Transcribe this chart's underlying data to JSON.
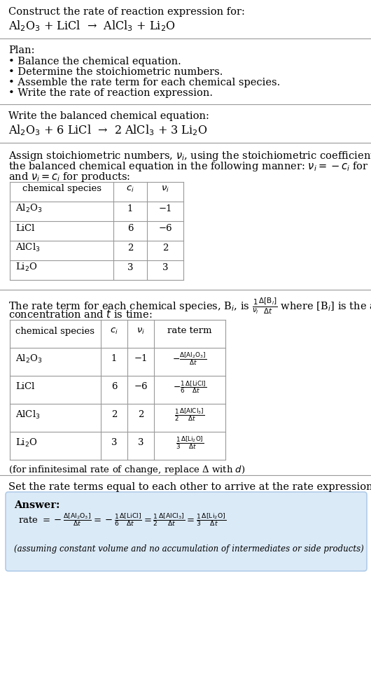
{
  "bg_color": "#ffffff",
  "text_color": "#000000",
  "answer_bg": "#dbeaf7",
  "answer_border": "#b0cce8",
  "title_text": "Construct the rate of reaction expression for:",
  "reaction_unbalanced": "Al$_2$O$_3$ + LiCl  →  AlCl$_3$ + Li$_2$O",
  "plan_header": "Plan:",
  "plan_bullets": [
    "• Balance the chemical equation.",
    "• Determine the stoichiometric numbers.",
    "• Assemble the rate term for each chemical species.",
    "• Write the rate of reaction expression."
  ],
  "balanced_header": "Write the balanced chemical equation:",
  "balanced_eq": "Al$_2$O$_3$ + 6 LiCl  →  2 AlCl$_3$ + 3 Li$_2$O",
  "stoich_intro_line1": "Assign stoichiometric numbers, $\\nu_i$, using the stoichiometric coefficients, $c_i$, from",
  "stoich_intro_line2": "the balanced chemical equation in the following manner: $\\nu_i = -c_i$ for reactants",
  "stoich_intro_line3": "and $\\nu_i = c_i$ for products:",
  "table1_headers": [
    "chemical species",
    "$c_i$",
    "$\\nu_i$"
  ],
  "table1_rows": [
    [
      "Al$_2$O$_3$",
      "1",
      "−1"
    ],
    [
      "LiCl",
      "6",
      "−6"
    ],
    [
      "AlCl$_3$",
      "2",
      "2"
    ],
    [
      "Li$_2$O",
      "3",
      "3"
    ]
  ],
  "rate_intro_line1": "The rate term for each chemical species, B$_i$, is $\\frac{1}{\\nu_i}\\frac{\\Delta[\\mathrm{B}_i]}{\\Delta t}$ where [B$_i$] is the amount",
  "rate_intro_line2": "concentration and $t$ is time:",
  "table2_headers": [
    "chemical species",
    "$c_i$",
    "$\\nu_i$",
    "rate term"
  ],
  "table2_rows": [
    [
      "Al$_2$O$_3$",
      "1",
      "−1"
    ],
    [
      "LiCl",
      "6",
      "−6"
    ],
    [
      "AlCl$_3$",
      "2",
      "2"
    ],
    [
      "Li$_2$O",
      "3",
      "3"
    ]
  ],
  "table2_rate_terms": [
    "$-\\frac{\\Delta[\\mathrm{Al_2O_3}]}{\\Delta t}$",
    "$-\\frac{1}{6}\\frac{\\Delta[\\mathrm{LiCl}]}{\\Delta t}$",
    "$\\frac{1}{2}\\frac{\\Delta[\\mathrm{AlCl_3}]}{\\Delta t}$",
    "$\\frac{1}{3}\\frac{\\Delta[\\mathrm{Li_2O}]}{\\Delta t}$"
  ],
  "infinitesimal_note": "(for infinitesimal rate of change, replace Δ with $d$)",
  "set_equal_text": "Set the rate terms equal to each other to arrive at the rate expression:",
  "answer_label": "Answer:",
  "assuming_note": "(assuming constant volume and no accumulation of intermediates or side products)"
}
